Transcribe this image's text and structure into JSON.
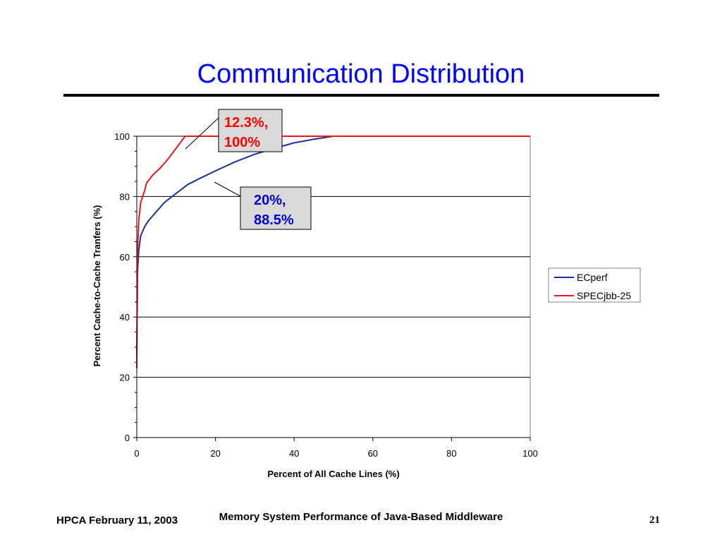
{
  "slide": {
    "title": "Communication Distribution"
  },
  "footer": {
    "left": "HPCA February 11, 2003",
    "center": "Memory System Performance of Java-Based Middleware",
    "page_number": "21"
  },
  "colors": {
    "title": "#0000ff",
    "ecperf": "#1f2f9a",
    "specjbb": "#e8191c",
    "callout_bg": "#d9d9d9",
    "callout_red_text": "#ff0000",
    "callout_blue_text": "#0000cc"
  },
  "chart_data": {
    "type": "line",
    "xlabel": "Percent of All Cache Lines (%)",
    "ylabel": "Percent Cache-to-Cache Tranfers (%)",
    "xlim": [
      0,
      100
    ],
    "ylim": [
      0,
      100
    ],
    "xticks": [
      0,
      20,
      40,
      60,
      80,
      100
    ],
    "yticks": [
      0,
      20,
      40,
      60,
      80,
      100
    ],
    "grid": "horizontal",
    "legend_position": "right",
    "series": [
      {
        "name": "ECperf",
        "color": "#1f2f9a",
        "x": [
          0,
          0.2,
          0.5,
          1,
          2,
          3,
          5,
          7,
          10,
          13,
          16,
          20,
          25,
          30,
          35,
          40,
          45,
          50,
          55,
          60,
          70,
          80,
          90,
          100
        ],
        "y": [
          28,
          55,
          62,
          67,
          70,
          72,
          75,
          78,
          81,
          84,
          86,
          88.5,
          91.5,
          94,
          96,
          97.8,
          99,
          100,
          100,
          100,
          100,
          100,
          100,
          100
        ]
      },
      {
        "name": "SPECjbb-25",
        "color": "#e8191c",
        "x": [
          0,
          0.2,
          0.5,
          1,
          1.5,
          2,
          2.5,
          4,
          6,
          8,
          10,
          12.3,
          20,
          40,
          60,
          80,
          100
        ],
        "y": [
          23,
          62,
          72,
          78,
          80,
          82,
          84.5,
          87,
          89.5,
          92.5,
          96,
          100,
          100,
          100,
          100,
          100,
          100
        ]
      }
    ],
    "annotations": [
      {
        "label_line1": "12.3%,",
        "label_line2": "100%",
        "x": 12.3,
        "y": 100,
        "color": "#ff0000"
      },
      {
        "label_line1": "20%,",
        "label_line2": "88.5%",
        "x": 20,
        "y": 88.5,
        "color": "#0000cc"
      }
    ]
  }
}
